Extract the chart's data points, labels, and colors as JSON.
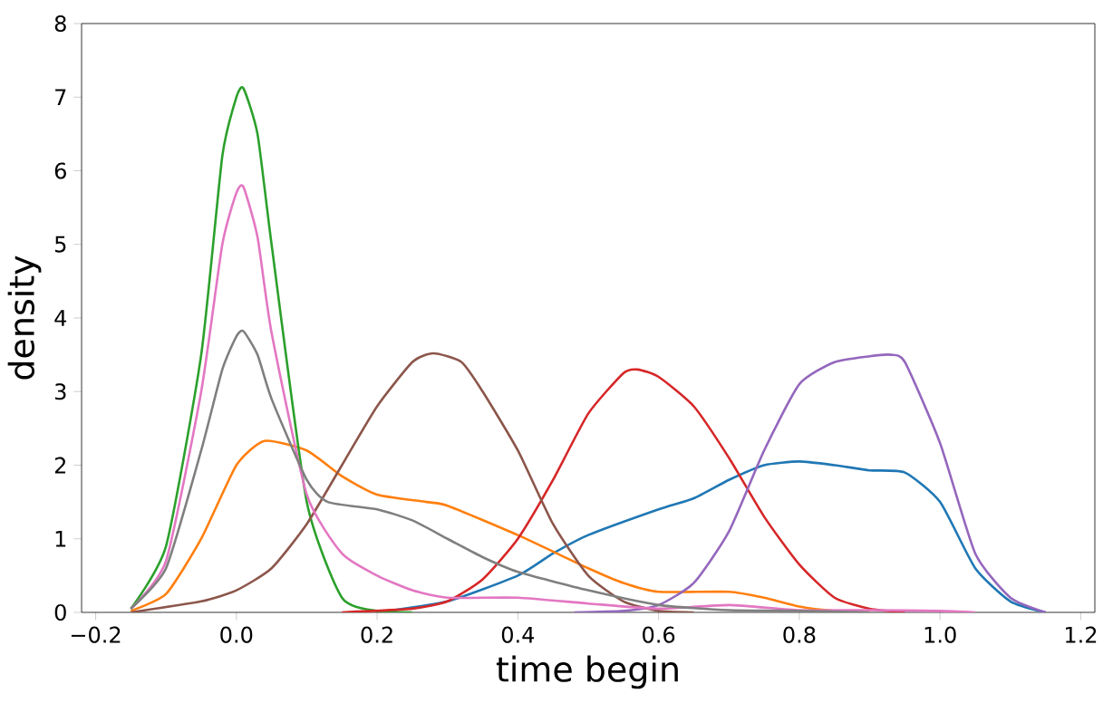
{
  "chart_data": {
    "type": "line",
    "xlabel": "time begin",
    "ylabel": "density",
    "xlim": [
      -0.22,
      1.22
    ],
    "ylim": [
      0,
      8
    ],
    "xticks": [
      {
        "value": -0.2,
        "label": "−0.2"
      },
      {
        "value": 0,
        "label": "0.0"
      },
      0.2,
      0.4,
      0.6,
      0.8,
      {
        "value": 1,
        "label": "1.0"
      },
      1.2
    ],
    "yticks": [
      0,
      1,
      2,
      3,
      4,
      5,
      6,
      7,
      8
    ],
    "marker": "none",
    "line_style": "solid",
    "series": [
      {
        "color": "#1f77b4",
        "x": [
          0.2,
          0.3,
          0.4,
          0.45,
          0.5,
          0.6,
          0.65,
          0.7,
          0.75,
          0.8,
          0.85,
          0.9,
          0.95,
          1.0,
          1.05,
          1.1,
          1.15
        ],
        "values": [
          0,
          0.15,
          0.5,
          0.8,
          1.05,
          1.4,
          1.55,
          1.8,
          2.0,
          2.05,
          2.0,
          1.93,
          1.9,
          1.5,
          0.6,
          0.15,
          0
        ]
      },
      {
        "color": "#ff7f0e",
        "x": [
          -0.15,
          -0.1,
          -0.05,
          0,
          0.04,
          0.1,
          0.15,
          0.2,
          0.27,
          0.3,
          0.4,
          0.5,
          0.55,
          0.6,
          0.7,
          0.75,
          0.8,
          0.85,
          0.9
        ],
        "values": [
          0.02,
          0.25,
          1.0,
          2.0,
          2.33,
          2.2,
          1.85,
          1.6,
          1.5,
          1.45,
          1.05,
          0.6,
          0.4,
          0.28,
          0.28,
          0.2,
          0.08,
          0.02,
          0
        ]
      },
      {
        "color": "#2ca02c",
        "x": [
          -0.15,
          -0.1,
          -0.05,
          -0.02,
          0,
          0.01,
          0.03,
          0.05,
          0.1,
          0.15,
          0.2,
          0.25
        ],
        "values": [
          0.05,
          0.9,
          3.5,
          6.2,
          7.0,
          7.12,
          6.5,
          5.0,
          1.5,
          0.2,
          0.02,
          0
        ]
      },
      {
        "color": "#d62728",
        "x": [
          0.15,
          0.25,
          0.3,
          0.35,
          0.4,
          0.45,
          0.5,
          0.55,
          0.57,
          0.6,
          0.65,
          0.7,
          0.75,
          0.8,
          0.85,
          0.9,
          0.95
        ],
        "values": [
          0,
          0.05,
          0.15,
          0.45,
          1.0,
          1.8,
          2.7,
          3.25,
          3.3,
          3.2,
          2.8,
          2.1,
          1.3,
          0.65,
          0.2,
          0.05,
          0
        ]
      },
      {
        "color": "#9467bd",
        "x": [
          0.48,
          0.55,
          0.6,
          0.65,
          0.7,
          0.75,
          0.8,
          0.85,
          0.9,
          0.93,
          0.95,
          1.0,
          1.05,
          1.1,
          1.15
        ],
        "values": [
          0,
          0.02,
          0.1,
          0.4,
          1.1,
          2.2,
          3.1,
          3.4,
          3.48,
          3.5,
          3.4,
          2.3,
          0.8,
          0.2,
          0
        ]
      },
      {
        "color": "#8c564b",
        "x": [
          -0.15,
          -0.05,
          0,
          0.05,
          0.1,
          0.15,
          0.2,
          0.25,
          0.28,
          0.32,
          0.35,
          0.4,
          0.45,
          0.5,
          0.55,
          0.6,
          0.65
        ],
        "values": [
          0,
          0.15,
          0.3,
          0.6,
          1.2,
          2.0,
          2.8,
          3.4,
          3.52,
          3.4,
          3.0,
          2.2,
          1.2,
          0.5,
          0.15,
          0.02,
          0
        ]
      },
      {
        "color": "#e377c2",
        "x": [
          -0.15,
          -0.1,
          -0.05,
          -0.02,
          0,
          0.01,
          0.03,
          0.05,
          0.1,
          0.15,
          0.2,
          0.25,
          0.3,
          0.4,
          0.5,
          0.6,
          0.7,
          0.8,
          0.9,
          1.0,
          1.05
        ],
        "values": [
          0.05,
          0.7,
          3.0,
          5.0,
          5.7,
          5.78,
          5.1,
          3.8,
          1.6,
          0.8,
          0.5,
          0.3,
          0.2,
          0.2,
          0.12,
          0.05,
          0.1,
          0.03,
          0.03,
          0.02,
          0
        ]
      },
      {
        "color": "#7f7f7f",
        "x": [
          -0.15,
          -0.1,
          -0.05,
          -0.02,
          0,
          0.01,
          0.03,
          0.05,
          0.1,
          0.13,
          0.2,
          0.25,
          0.3,
          0.35,
          0.4,
          0.5,
          0.6,
          0.7,
          0.8,
          0.9
        ],
        "values": [
          0.05,
          0.6,
          2.2,
          3.3,
          3.75,
          3.82,
          3.5,
          2.9,
          1.8,
          1.5,
          1.4,
          1.25,
          1.0,
          0.75,
          0.55,
          0.3,
          0.1,
          0.03,
          0.02,
          0
        ]
      }
    ]
  }
}
